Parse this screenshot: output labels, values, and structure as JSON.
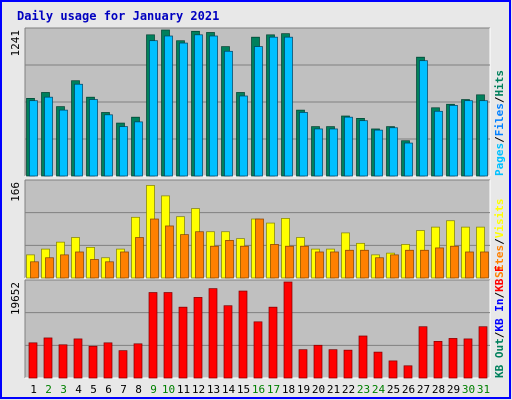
{
  "title": "Daily usage for January 2021",
  "colors": {
    "background": "#e8e8e8",
    "plot_bg": "#c0c0c0",
    "border": "#0000ff",
    "title": "#0000c0",
    "hits": "#00805c",
    "files": "#0080ff",
    "pages": "#00c0ff",
    "visits": "#ffff00",
    "sites": "#ff8000",
    "kb_in": "#0000ff",
    "kb_out": "#00805c",
    "kb_f": "#ff0000",
    "weekend_label": "#008000",
    "weekday_label": "#000000"
  },
  "chart_data": [
    {
      "type": "bar",
      "panel": "top",
      "ymax_label": "1241",
      "ylim": [
        0,
        1241
      ],
      "categories": [
        "1",
        "2",
        "3",
        "4",
        "5",
        "6",
        "7",
        "8",
        "9",
        "10",
        "11",
        "12",
        "13",
        "14",
        "15",
        "16",
        "17",
        "18",
        "19",
        "20",
        "21",
        "22",
        "23",
        "24",
        "25",
        "26",
        "27",
        "28",
        "29",
        "30",
        "31"
      ],
      "legend": [
        {
          "label": "Hits",
          "color": "#00805c"
        },
        {
          "label": "Files",
          "color": "#0080ff"
        },
        {
          "label": "Pages",
          "color": "#00c0ff"
        }
      ],
      "series": [
        {
          "name": "Hits",
          "values": [
            660,
            710,
            590,
            810,
            670,
            540,
            450,
            500,
            1200,
            1241,
            1150,
            1230,
            1220,
            1100,
            710,
            1180,
            1200,
            1210,
            560,
            420,
            420,
            510,
            490,
            400,
            420,
            300,
            1010,
            580,
            610,
            650,
            690
          ]
        },
        {
          "name": "Pages",
          "values": [
            640,
            670,
            560,
            780,
            650,
            520,
            420,
            460,
            1150,
            1190,
            1130,
            1200,
            1190,
            1060,
            680,
            1100,
            1180,
            1180,
            540,
            400,
            400,
            500,
            470,
            390,
            410,
            280,
            980,
            550,
            600,
            640,
            640
          ]
        }
      ]
    },
    {
      "type": "bar",
      "panel": "middle",
      "ymax_label": "166",
      "ylim": [
        0,
        166
      ],
      "categories": [
        "1",
        "2",
        "3",
        "4",
        "5",
        "6",
        "7",
        "8",
        "9",
        "10",
        "11",
        "12",
        "13",
        "14",
        "15",
        "16",
        "17",
        "18",
        "19",
        "20",
        "21",
        "22",
        "23",
        "24",
        "25",
        "26",
        "27",
        "28",
        "29",
        "30",
        "31"
      ],
      "legend": [
        {
          "label": "Visits",
          "color": "#ffff00"
        },
        {
          "label": "Sites",
          "color": "#ff8000"
        }
      ],
      "series": [
        {
          "name": "Visits",
          "values": [
            40,
            50,
            62,
            70,
            53,
            35,
            50,
            105,
            160,
            142,
            106,
            120,
            80,
            80,
            68,
            102,
            95,
            103,
            70,
            50,
            50,
            78,
            60,
            40,
            43,
            58,
            82,
            88,
            99,
            88,
            88
          ]
        },
        {
          "name": "Sites",
          "values": [
            28,
            35,
            40,
            45,
            32,
            28,
            45,
            70,
            102,
            90,
            75,
            80,
            55,
            65,
            55,
            102,
            58,
            55,
            55,
            45,
            45,
            48,
            48,
            35,
            40,
            48,
            48,
            52,
            55,
            45,
            45
          ]
        }
      ]
    },
    {
      "type": "bar",
      "panel": "bottom",
      "ymax_label": "19652",
      "ylim": [
        0,
        19652
      ],
      "categories": [
        "1",
        "2",
        "3",
        "4",
        "5",
        "6",
        "7",
        "8",
        "9",
        "10",
        "11",
        "12",
        "13",
        "14",
        "15",
        "16",
        "17",
        "18",
        "19",
        "20",
        "21",
        "22",
        "23",
        "24",
        "25",
        "26",
        "27",
        "28",
        "29",
        "30",
        "31"
      ],
      "legend": [
        {
          "label": "KB F",
          "color": "#ff0000"
        },
        {
          "label": "KB In",
          "color": "#0000ff"
        },
        {
          "label": "KB Out",
          "color": "#00805c"
        }
      ],
      "series": [
        {
          "name": "KB F",
          "values": [
            7200,
            8200,
            6800,
            8000,
            6500,
            7200,
            5600,
            7000,
            17500,
            17500,
            14500,
            16500,
            18300,
            14800,
            17800,
            11500,
            14500,
            19652,
            5800,
            6700,
            5800,
            5700,
            8600,
            5300,
            3500,
            2500,
            10500,
            7500,
            8100,
            8000,
            10500
          ]
        }
      ]
    }
  ]
}
